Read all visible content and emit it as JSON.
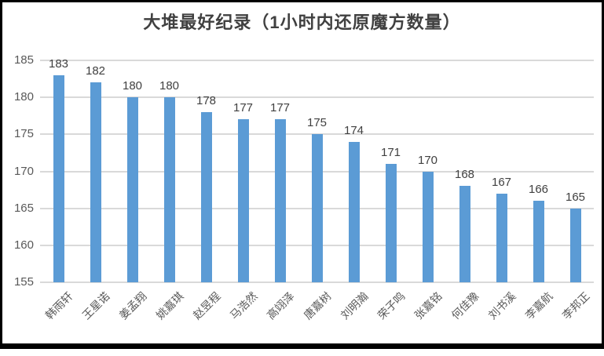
{
  "chart_data": {
    "type": "bar",
    "title": "大堆最好纪录（1小时内还原魔方数量）",
    "categories": [
      "韩雨轩",
      "王星诺",
      "姜孟翔",
      "姚嘉琪",
      "赵昱程",
      "马浩然",
      "高翊泽",
      "唐嘉树",
      "刘明瀚",
      "荣子鸣",
      "张嘉铭",
      "何佳豫",
      "刘书溪",
      "李嘉航",
      "李邦正"
    ],
    "values": [
      183,
      182,
      180,
      180,
      178,
      177,
      177,
      175,
      174,
      171,
      170,
      168,
      167,
      166,
      165
    ],
    "xlabel": "",
    "ylabel": "",
    "ylim": [
      155,
      185
    ],
    "yticks": [
      185,
      180,
      175,
      170,
      165,
      160,
      155
    ],
    "grid": true,
    "legend_position": "none",
    "data_labels": true,
    "x_label_rotation_deg": 45,
    "colors": {
      "bar": "#5B9BD5",
      "title": "#404040",
      "value_label": "#404040",
      "axis_label": "#595959",
      "gridline": "#D9D9D9",
      "frame_border": "#000000",
      "background": "#FFFFFF"
    }
  }
}
